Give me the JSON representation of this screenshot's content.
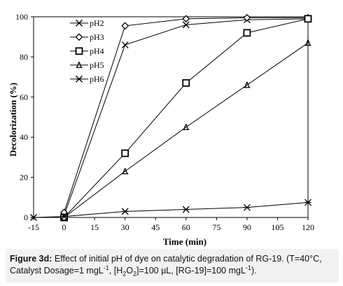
{
  "chart_data": {
    "type": "line",
    "title": "",
    "xlabel": "Time (min)",
    "ylabel": "Decolorization (%)",
    "xlim": [
      -15,
      120
    ],
    "ylim": [
      0,
      100
    ],
    "xticks": [
      -15,
      0,
      15,
      30,
      45,
      60,
      75,
      90,
      105,
      120
    ],
    "yticks": [
      0,
      20,
      40,
      60,
      80,
      100
    ],
    "grid": false,
    "legend_position": "top-left",
    "series": [
      {
        "name": "pH2",
        "marker": "x",
        "x": [
          0,
          30,
          60,
          90,
          120
        ],
        "y": [
          1,
          86,
          96,
          98.5,
          99
        ]
      },
      {
        "name": "pH3",
        "marker": "diamond",
        "x": [
          0,
          30,
          60,
          90,
          120
        ],
        "y": [
          2.5,
          95.5,
          99,
          99.5,
          99.5
        ]
      },
      {
        "name": "pH4",
        "marker": "square",
        "x": [
          0,
          30,
          60,
          90,
          120
        ],
        "y": [
          0,
          32,
          67,
          92,
          99
        ]
      },
      {
        "name": "pH5",
        "marker": "tri",
        "x": [
          0,
          30,
          60,
          90,
          120
        ],
        "y": [
          0,
          23,
          45,
          66,
          87
        ]
      },
      {
        "name": "pH6",
        "marker": "star",
        "x": [
          -15,
          0,
          30,
          60,
          90,
          120
        ],
        "y": [
          0,
          0.5,
          3,
          4,
          5,
          7.5
        ]
      }
    ]
  },
  "caption": {
    "label": "Figure 3d:",
    "line1": " Effect of initial pH of dye on catalytic degradation of RG-19. (T=40°C,",
    "line2_a": "Catalyst Dosage=1 mgL",
    "sup1": "-1",
    "line2_b": ", [H",
    "sub1": "2",
    "line2_c": "O",
    "sub2": "2",
    "line2_d": "]=100 µL, [RG-19]=100 mgL",
    "sup2": "-1",
    "line2_e": ")."
  }
}
